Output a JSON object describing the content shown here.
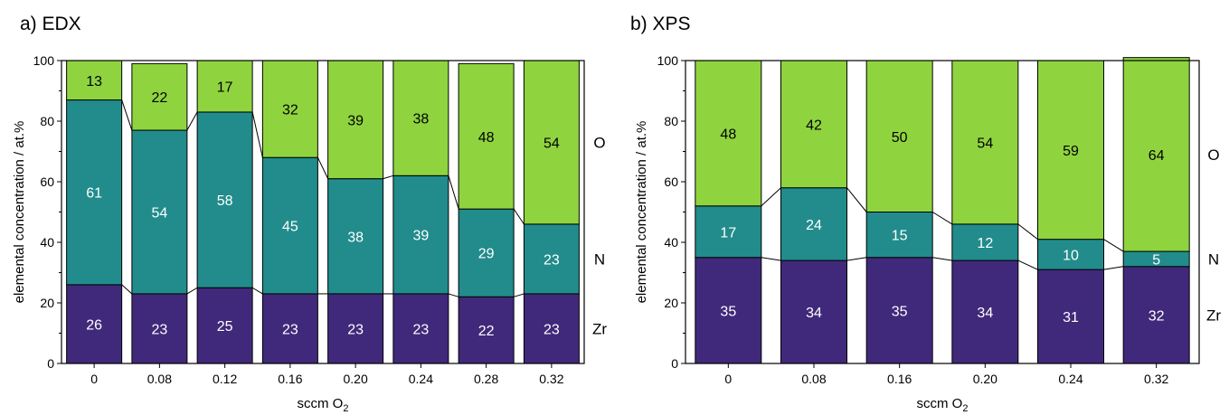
{
  "colors": {
    "Zr": "#40297a",
    "N": "#218c8b",
    "O": "#8fd43f",
    "connector": "#000000",
    "frame": "#000000"
  },
  "chart_data": [
    {
      "type": "bar",
      "stacked": true,
      "title": "a) EDX",
      "xlabel": "sccm O",
      "xlabel_subscript": "2",
      "ylabel": "elemental concentration / at.%",
      "ylim": [
        0,
        100
      ],
      "yticks": [
        "0",
        "20",
        "40",
        "60",
        "80",
        "100"
      ],
      "categories": [
        "0",
        "0.08",
        "0.12",
        "0.16",
        "0.20",
        "0.24",
        "0.28",
        "0.32"
      ],
      "series": [
        {
          "name": "Zr",
          "values": [
            26,
            23,
            25,
            23,
            23,
            23,
            22,
            23
          ]
        },
        {
          "name": "N",
          "values": [
            61,
            54,
            58,
            45,
            38,
            39,
            29,
            23
          ]
        },
        {
          "name": "O",
          "values": [
            13,
            22,
            17,
            32,
            39,
            38,
            48,
            54
          ]
        }
      ],
      "grid": false,
      "legend": "right"
    },
    {
      "type": "bar",
      "stacked": true,
      "title": "b) XPS",
      "xlabel": "sccm O",
      "xlabel_subscript": "2",
      "ylabel": "elemental concentration / at.%",
      "ylim": [
        0,
        100
      ],
      "yticks": [
        "0",
        "20",
        "40",
        "60",
        "80",
        "100"
      ],
      "categories": [
        "0",
        "0.08",
        "0.16",
        "0.20",
        "0.24",
        "0.32"
      ],
      "series": [
        {
          "name": "Zr",
          "values": [
            35,
            34,
            35,
            34,
            31,
            32
          ]
        },
        {
          "name": "N",
          "values": [
            17,
            24,
            15,
            12,
            10,
            5
          ]
        },
        {
          "name": "O",
          "values": [
            48,
            42,
            50,
            54,
            59,
            64
          ]
        }
      ],
      "grid": false,
      "legend": "right"
    }
  ]
}
